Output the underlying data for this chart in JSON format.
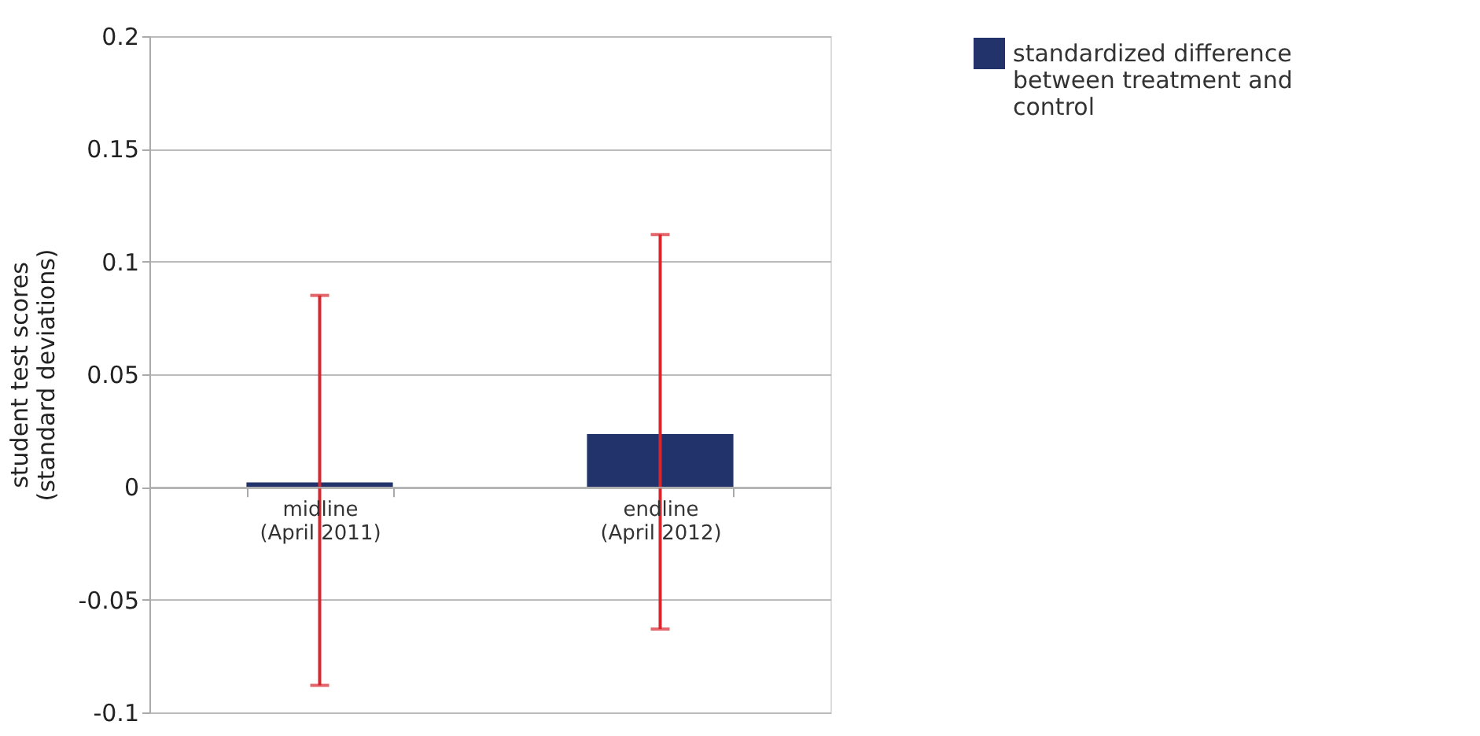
{
  "chart_data": {
    "type": "bar",
    "ylabel": "student test scores\n(standard deviations)",
    "categories": [
      "midline\n(April 2011)",
      "endline\n(April 2012)"
    ],
    "series": [
      {
        "name": "standardized difference between treatment and control",
        "color": "#22336b",
        "values": [
          0.002,
          0.0235
        ],
        "errors": [
          [
            -0.088,
            0.085
          ],
          [
            -0.063,
            0.112
          ]
        ]
      }
    ],
    "ylim": [
      -0.1,
      0.2
    ],
    "yticks": [
      -0.1,
      -0.05,
      0,
      0.05,
      0.1,
      0.15,
      0.2
    ],
    "grid": "y",
    "legend": "right"
  }
}
